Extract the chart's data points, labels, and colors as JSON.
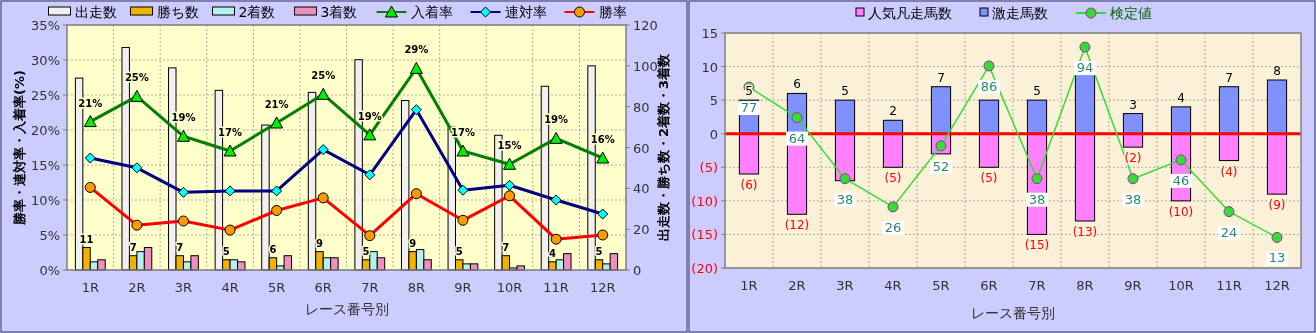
{
  "chart_data": [
    {
      "type": "bar",
      "categories": [
        "1R",
        "2R",
        "3R",
        "4R",
        "5R",
        "6R",
        "7R",
        "8R",
        "9R",
        "10R",
        "11R",
        "12R"
      ],
      "xlabel": "レース番号別",
      "ylabel": "勝率・連対率・入着率(%)",
      "y2label": "出走数・勝ち数・2着数・3着数",
      "ylim": [
        0,
        35
      ],
      "yticks": [
        {
          "value": 0,
          "label": "0%"
        },
        {
          "value": 5,
          "label": "5%"
        },
        {
          "value": 10,
          "label": "10%"
        },
        {
          "value": 15,
          "label": "15%"
        },
        {
          "value": 20,
          "label": "20%"
        },
        {
          "value": 25,
          "label": "25%"
        },
        {
          "value": 30,
          "label": "30%"
        },
        {
          "value": 35,
          "label": "35%"
        }
      ],
      "y2lim": [
        0,
        120
      ],
      "y2ticks": [
        0,
        20,
        40,
        60,
        80,
        100,
        120
      ],
      "grid": true,
      "legend": "top",
      "series": [
        {
          "name": "出走数",
          "type": "bar",
          "axis": "y2",
          "color": "#f0f0f0",
          "values": [
            94,
            109,
            99,
            88,
            71,
            87,
            103,
            83,
            70,
            66,
            90,
            100
          ]
        },
        {
          "name": "勝ち数",
          "type": "bar",
          "axis": "y2",
          "color": "#f0b400",
          "values": [
            11,
            7,
            7,
            5,
            6,
            9,
            5,
            9,
            5,
            7,
            4,
            5
          ],
          "value_labels": [
            "11",
            "7",
            "7",
            "5",
            "6",
            "9",
            "5",
            "9",
            "5",
            "7",
            "4",
            "5"
          ]
        },
        {
          "name": "2着数",
          "type": "bar",
          "axis": "y2",
          "color": "#b4f0f0",
          "values": [
            4,
            9,
            4,
            5,
            2,
            6,
            9,
            10,
            3,
            1,
            5,
            3
          ]
        },
        {
          "name": "3着数",
          "type": "bar",
          "axis": "y2",
          "color": "#f090c0",
          "values": [
            5,
            11,
            7,
            4,
            7,
            6,
            6,
            5,
            3,
            2,
            8,
            8
          ]
        },
        {
          "name": "入着率",
          "type": "line",
          "color": "#008000",
          "marker": "triangle",
          "values": [
            21.2,
            24.8,
            19.1,
            17.0,
            21.0,
            25.1,
            19.3,
            28.8,
            17.0,
            15.1,
            18.8,
            16.0
          ],
          "value_labels": [
            "21%",
            "25%",
            "19%",
            "17%",
            "21%",
            "25%",
            "19%",
            "29%",
            "17%",
            "15%",
            "19%",
            "16%"
          ]
        },
        {
          "name": "連対率",
          "type": "line",
          "color": "#000080",
          "marker": "diamond",
          "values": [
            16.0,
            14.6,
            11.1,
            11.3,
            11.3,
            17.2,
            13.6,
            22.9,
            11.4,
            12.1,
            10.0,
            8.0
          ]
        },
        {
          "name": "勝率",
          "type": "line",
          "color": "#ff0000",
          "marker": "circle",
          "values": [
            11.8,
            6.4,
            7.0,
            5.7,
            8.5,
            10.3,
            4.9,
            10.9,
            7.1,
            10.6,
            4.4,
            5.0
          ]
        }
      ]
    },
    {
      "type": "bar",
      "stacked": true,
      "categories": [
        "1R",
        "2R",
        "3R",
        "4R",
        "5R",
        "6R",
        "7R",
        "8R",
        "9R",
        "10R",
        "11R",
        "12R"
      ],
      "xlabel": "レース番号別",
      "ylim": [
        -20,
        15
      ],
      "yticks": [
        15,
        10,
        5,
        0,
        {
          "value": -5,
          "label": "(5)"
        },
        {
          "value": -10,
          "label": "(10)"
        },
        {
          "value": -15,
          "label": "(15)"
        },
        {
          "value": -20,
          "label": "(20)"
        }
      ],
      "y2lim": [
        0,
        100
      ],
      "grid": true,
      "legend": "top",
      "ref_lines": [
        {
          "axis": "y",
          "value": 0,
          "color": "#ff0000"
        }
      ],
      "series": [
        {
          "name": "人気凡走馬数",
          "type": "bar",
          "color": "#ff80ff",
          "values": [
            -6,
            -12,
            -7,
            -5,
            -3,
            -5,
            -15,
            -13,
            -2,
            -10,
            -4,
            -9
          ],
          "value_labels": [
            "(6)",
            "(12)",
            null,
            "(5)",
            null,
            "(5)",
            "(15)",
            "(13)",
            "(2)",
            "(10)",
            "(4)",
            "(9)"
          ]
        },
        {
          "name": "激走馬数",
          "type": "bar",
          "color": "#8090ff",
          "values": [
            5,
            6,
            5,
            2,
            7,
            5,
            5,
            9,
            3,
            4,
            7,
            8
          ],
          "value_labels": [
            "5",
            "6",
            "5",
            "2",
            "7",
            null,
            "5",
            null,
            "3",
            "4",
            "7",
            "8"
          ]
        },
        {
          "name": "検定値",
          "type": "line",
          "axis": "y2",
          "color": "#33dd33",
          "marker": "circle",
          "values": [
            77,
            64,
            38,
            26,
            52,
            86,
            38,
            94,
            38,
            46,
            24,
            13
          ],
          "value_labels": [
            "77",
            "64",
            "38",
            "26",
            "52",
            "86",
            "38",
            "94",
            "38",
            "46",
            "24",
            "13"
          ]
        }
      ]
    }
  ]
}
